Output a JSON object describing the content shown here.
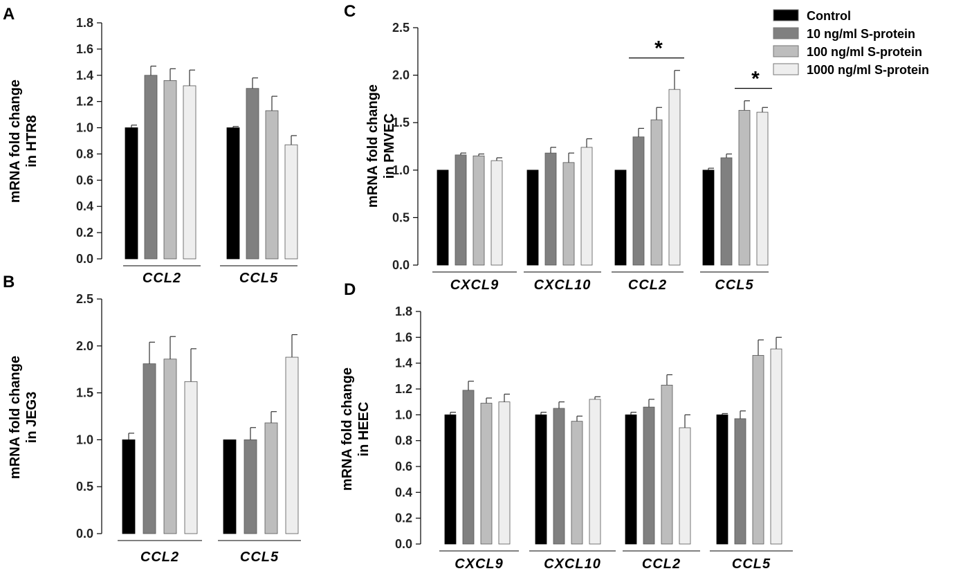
{
  "figure": {
    "legend": [
      {
        "label": "Control",
        "color": "#000000"
      },
      {
        "label": "10 ng/ml S-protein",
        "color": "#808080"
      },
      {
        "label": "100 ng/ml S-protein",
        "color": "#bdbdbd"
      },
      {
        "label": "1000 ng/ml S-protein",
        "color": "#eeeeee"
      }
    ]
  },
  "chart_data": [
    {
      "id": "A",
      "type": "bar",
      "panel_label": "A",
      "ylabel": "mRNA fold change",
      "ylabel2": "in HTR8",
      "ylim": [
        0,
        1.8
      ],
      "ytick_step": 0.2,
      "tick_decimals": 1,
      "categories": [
        "CCL2",
        "CCL5"
      ],
      "series": [
        {
          "name": "Control",
          "values": [
            1.0,
            1.0
          ],
          "errors": [
            0.02,
            0.01
          ]
        },
        {
          "name": "10 ng/ml S-protein",
          "values": [
            1.4,
            1.3
          ],
          "errors": [
            0.07,
            0.08
          ]
        },
        {
          "name": "100 ng/ml S-protein",
          "values": [
            1.36,
            1.13
          ],
          "errors": [
            0.09,
            0.11
          ]
        },
        {
          "name": "1000 ng/ml S-protein",
          "values": [
            1.32,
            0.87
          ],
          "errors": [
            0.12,
            0.07
          ]
        }
      ],
      "significance": []
    },
    {
      "id": "B",
      "type": "bar",
      "panel_label": "B",
      "ylabel": "mRNA fold change",
      "ylabel2": "in JEG3",
      "ylim": [
        0,
        2.5
      ],
      "ytick_step": 0.5,
      "tick_decimals": 1,
      "categories": [
        "CCL2",
        "CCL5"
      ],
      "series": [
        {
          "name": "Control",
          "values": [
            1.0,
            1.0
          ],
          "errors": [
            0.07,
            0.0
          ]
        },
        {
          "name": "10 ng/ml S-protein",
          "values": [
            1.81,
            1.0
          ],
          "errors": [
            0.23,
            0.13
          ]
        },
        {
          "name": "100 ng/ml S-protein",
          "values": [
            1.86,
            1.18
          ],
          "errors": [
            0.24,
            0.12
          ]
        },
        {
          "name": "1000 ng/ml S-protein",
          "values": [
            1.62,
            1.88
          ],
          "errors": [
            0.35,
            0.24
          ]
        }
      ],
      "significance": []
    },
    {
      "id": "C",
      "type": "bar",
      "panel_label": "C",
      "ylabel": "mRNA fold change",
      "ylabel2": "in PMVEC",
      "ylim": [
        0,
        2.5
      ],
      "ytick_step": 0.5,
      "tick_decimals": 1,
      "categories": [
        "CXCL9",
        "CXCL10",
        "CCL2",
        "CCL5"
      ],
      "series": [
        {
          "name": "Control",
          "values": [
            1.0,
            1.0,
            1.0,
            1.0
          ],
          "errors": [
            0.0,
            0.0,
            0.0,
            0.02
          ]
        },
        {
          "name": "10 ng/ml S-protein",
          "values": [
            1.16,
            1.18,
            1.35,
            1.13
          ],
          "errors": [
            0.02,
            0.06,
            0.09,
            0.04
          ]
        },
        {
          "name": "100 ng/ml S-protein",
          "values": [
            1.15,
            1.08,
            1.53,
            1.63
          ],
          "errors": [
            0.02,
            0.1,
            0.13,
            0.1
          ]
        },
        {
          "name": "1000 ng/ml S-protein",
          "values": [
            1.1,
            1.24,
            1.85,
            1.61
          ],
          "errors": [
            0.03,
            0.09,
            0.2,
            0.05
          ]
        }
      ],
      "significance": [
        {
          "category": 2,
          "from_series": 1,
          "to_series": 3,
          "symbol": "*"
        },
        {
          "category": 3,
          "from_series": 2,
          "to_series": 3,
          "symbol": "*"
        }
      ]
    },
    {
      "id": "D",
      "type": "bar",
      "panel_label": "D",
      "ylabel": "mRNA fold change",
      "ylabel2": "in HEEC",
      "ylim": [
        0,
        1.8
      ],
      "ytick_step": 0.2,
      "tick_decimals": 1,
      "categories": [
        "CXCL9",
        "CXCL10",
        "CCL2",
        "CCL5"
      ],
      "series": [
        {
          "name": "Control",
          "values": [
            1.0,
            1.0,
            1.0,
            1.0
          ],
          "errors": [
            0.02,
            0.02,
            0.02,
            0.01
          ]
        },
        {
          "name": "10 ng/ml S-protein",
          "values": [
            1.19,
            1.05,
            1.06,
            0.97
          ],
          "errors": [
            0.07,
            0.05,
            0.06,
            0.06
          ]
        },
        {
          "name": "100 ng/ml S-protein",
          "values": [
            1.09,
            0.95,
            1.23,
            1.46
          ],
          "errors": [
            0.04,
            0.04,
            0.08,
            0.12
          ]
        },
        {
          "name": "1000 ng/ml S-protein",
          "values": [
            1.1,
            1.12,
            0.9,
            1.51
          ],
          "errors": [
            0.06,
            0.02,
            0.1,
            0.09
          ]
        }
      ],
      "significance": []
    }
  ]
}
